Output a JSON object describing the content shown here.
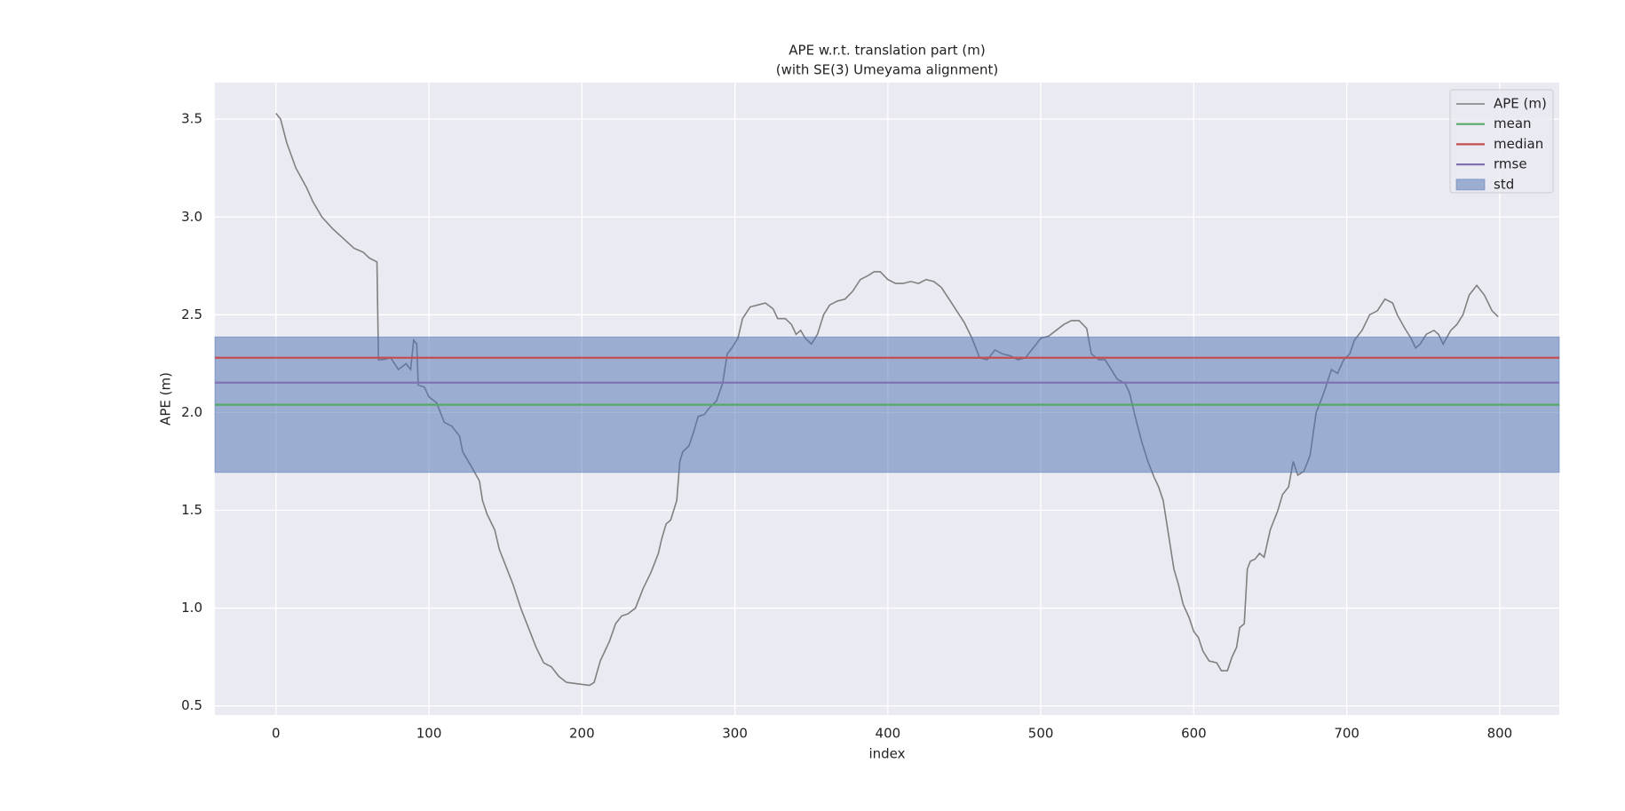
{
  "chart_data": {
    "type": "line",
    "title": "APE w.r.t. translation part (m)",
    "subtitle": "(with SE(3) Umeyama alignment)",
    "x_label": "index",
    "y_label": "APE (m)",
    "xlim": [
      -39.95,
      838.95
    ],
    "xticks": [
      0,
      100,
      200,
      300,
      400,
      500,
      600,
      700,
      800
    ],
    "ylim": [
      0.453,
      3.687
    ],
    "yticks": [
      0.5,
      {
        "value": 1,
        "label": "1.0"
      },
      1.5,
      {
        "value": 2,
        "label": "2.0"
      },
      2.5,
      {
        "value": 3,
        "label": "3.0"
      },
      3.5
    ],
    "grid": true,
    "legend": "upper right",
    "series": [
      {
        "name": "APE (m)",
        "color": "#808080",
        "x": [
          0,
          3,
          7,
          13,
          20,
          24,
          30,
          37,
          44,
          51,
          57,
          61,
          66,
          67,
          70,
          75,
          80,
          85,
          88,
          90,
          92,
          93,
          97,
          100,
          105,
          110,
          115,
          120,
          122,
          128,
          133,
          135,
          138,
          143,
          146,
          150,
          155,
          160,
          165,
          170,
          175,
          180,
          185,
          190,
          195,
          200,
          205,
          208,
          212,
          215,
          218,
          222,
          226,
          230,
          235,
          240,
          245,
          250,
          252,
          255,
          258,
          262,
          264,
          266,
          270,
          273,
          276,
          280,
          284,
          288,
          292,
          295,
          298,
          302,
          305,
          310,
          315,
          320,
          325,
          328,
          333,
          337,
          340,
          343,
          346,
          350,
          354,
          358,
          362,
          367,
          372,
          377,
          382,
          387,
          391,
          395,
          400,
          405,
          410,
          415,
          420,
          425,
          430,
          435,
          440,
          445,
          450,
          455,
          460,
          465,
          470,
          475,
          480,
          485,
          490,
          495,
          500,
          505,
          510,
          515,
          520,
          525,
          530,
          533,
          538,
          542,
          546,
          550,
          555,
          558,
          562,
          566,
          570,
          574,
          577,
          580,
          583,
          587,
          590,
          593,
          597,
          600,
          603,
          606,
          610,
          615,
          618,
          622,
          625,
          628,
          630,
          633,
          635,
          637,
          640,
          643,
          646,
          650,
          655,
          658,
          662,
          665,
          668,
          672,
          676,
          680,
          685,
          690,
          694,
          698,
          702,
          705,
          710,
          715,
          720,
          725,
          730,
          733,
          738,
          742,
          745,
          748,
          752,
          757,
          760,
          763,
          768,
          772,
          776,
          780,
          785,
          790,
          795,
          799
        ],
        "values": [
          3.53,
          3.5,
          3.38,
          3.25,
          3.15,
          3.08,
          3.0,
          2.94,
          2.89,
          2.84,
          2.82,
          2.79,
          2.77,
          2.27,
          2.27,
          2.28,
          2.22,
          2.25,
          2.22,
          2.37,
          2.35,
          2.14,
          2.13,
          2.08,
          2.05,
          1.95,
          1.93,
          1.88,
          1.8,
          1.72,
          1.65,
          1.55,
          1.48,
          1.4,
          1.3,
          1.22,
          1.12,
          1.0,
          0.9,
          0.8,
          0.72,
          0.7,
          0.65,
          0.62,
          0.615,
          0.61,
          0.605,
          0.62,
          0.73,
          0.78,
          0.83,
          0.92,
          0.96,
          0.97,
          1.0,
          1.1,
          1.18,
          1.28,
          1.35,
          1.43,
          1.45,
          1.55,
          1.75,
          1.8,
          1.83,
          1.9,
          1.98,
          1.99,
          2.03,
          2.06,
          2.15,
          2.3,
          2.33,
          2.38,
          2.48,
          2.54,
          2.55,
          2.56,
          2.53,
          2.48,
          2.48,
          2.45,
          2.4,
          2.42,
          2.38,
          2.35,
          2.4,
          2.5,
          2.55,
          2.57,
          2.58,
          2.62,
          2.68,
          2.7,
          2.72,
          2.72,
          2.68,
          2.66,
          2.66,
          2.67,
          2.66,
          2.68,
          2.67,
          2.64,
          2.58,
          2.52,
          2.46,
          2.38,
          2.28,
          2.27,
          2.32,
          2.3,
          2.29,
          2.27,
          2.28,
          2.33,
          2.38,
          2.39,
          2.42,
          2.45,
          2.47,
          2.47,
          2.43,
          2.3,
          2.27,
          2.27,
          2.22,
          2.17,
          2.15,
          2.1,
          1.97,
          1.85,
          1.75,
          1.67,
          1.62,
          1.55,
          1.4,
          1.2,
          1.12,
          1.02,
          0.95,
          0.88,
          0.85,
          0.78,
          0.73,
          0.72,
          0.68,
          0.68,
          0.75,
          0.8,
          0.9,
          0.92,
          1.2,
          1.24,
          1.25,
          1.28,
          1.26,
          1.4,
          1.5,
          1.58,
          1.62,
          1.75,
          1.68,
          1.7,
          1.78,
          2.0,
          2.1,
          2.22,
          2.2,
          2.27,
          2.3,
          2.37,
          2.42,
          2.5,
          2.52,
          2.58,
          2.56,
          2.5,
          2.43,
          2.38,
          2.33,
          2.35,
          2.4,
          2.42,
          2.4,
          2.35,
          2.42,
          2.45,
          2.5,
          2.6,
          2.65,
          2.6,
          2.52,
          2.49
        ]
      },
      {
        "name": "mean",
        "color": "#55a868",
        "value": 2.04
      },
      {
        "name": "median",
        "color": "#c44e52",
        "value": 2.28
      },
      {
        "name": "rmse",
        "color": "#8172b2",
        "value": 2.153
      },
      {
        "name": "std",
        "color": "#4c72b0",
        "value": 0.346
      }
    ]
  }
}
